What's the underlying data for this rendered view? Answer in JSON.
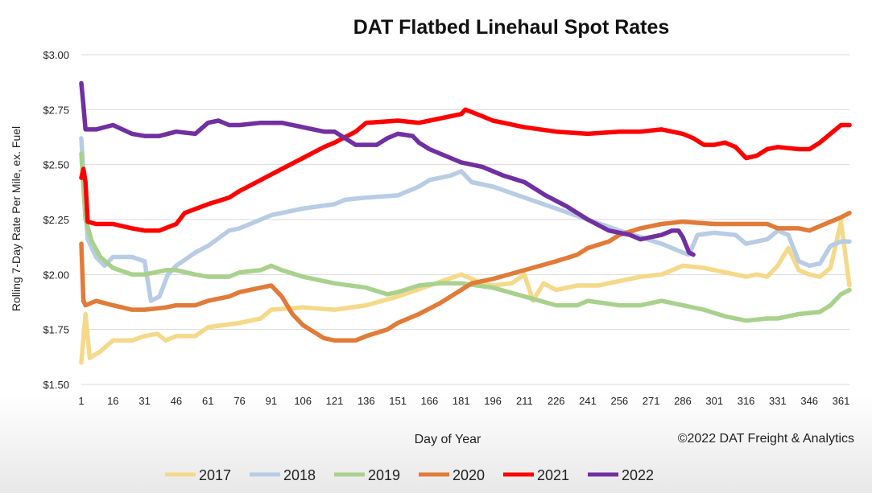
{
  "chart_data": {
    "type": "line",
    "title": "DAT Flatbed Linehaul Spot Rates",
    "xlabel": "Day of Year",
    "ylabel": "Rolling 7-Day Rate Per Mile, ex. Fuel",
    "copyright": "©2022 DAT Freight & Analytics",
    "xlim": [
      1,
      365
    ],
    "ylim": [
      1.5,
      3.0
    ],
    "x_ticks": [
      1,
      16,
      31,
      46,
      61,
      76,
      91,
      106,
      121,
      136,
      151,
      166,
      181,
      196,
      211,
      226,
      241,
      256,
      271,
      286,
      301,
      316,
      331,
      346,
      361
    ],
    "y_ticks": [
      {
        "value": 1.5,
        "label": "$1.50"
      },
      {
        "value": 1.75,
        "label": "$1.75"
      },
      {
        "value": 2.0,
        "label": "$2.00"
      },
      {
        "value": 2.25,
        "label": "$2.25"
      },
      {
        "value": 2.5,
        "label": "$2.50"
      },
      {
        "value": 2.75,
        "label": "$2.75"
      },
      {
        "value": 3.0,
        "label": "$3.00"
      }
    ],
    "grid": true,
    "legend_position": "bottom",
    "series": [
      {
        "name": "2017",
        "color": "#f5d98a",
        "points": [
          [
            1,
            1.6
          ],
          [
            3,
            1.82
          ],
          [
            5,
            1.62
          ],
          [
            10,
            1.65
          ],
          [
            16,
            1.7
          ],
          [
            25,
            1.7
          ],
          [
            31,
            1.72
          ],
          [
            37,
            1.73
          ],
          [
            41,
            1.7
          ],
          [
            46,
            1.72
          ],
          [
            55,
            1.72
          ],
          [
            61,
            1.76
          ],
          [
            76,
            1.78
          ],
          [
            86,
            1.8
          ],
          [
            91,
            1.84
          ],
          [
            106,
            1.85
          ],
          [
            121,
            1.84
          ],
          [
            136,
            1.86
          ],
          [
            151,
            1.9
          ],
          [
            166,
            1.95
          ],
          [
            181,
            2.0
          ],
          [
            191,
            1.96
          ],
          [
            196,
            1.95
          ],
          [
            205,
            1.96
          ],
          [
            211,
            2.0
          ],
          [
            215,
            1.88
          ],
          [
            220,
            1.96
          ],
          [
            226,
            1.93
          ],
          [
            236,
            1.95
          ],
          [
            246,
            1.95
          ],
          [
            256,
            1.97
          ],
          [
            266,
            1.99
          ],
          [
            276,
            2.0
          ],
          [
            286,
            2.04
          ],
          [
            296,
            2.03
          ],
          [
            301,
            2.02
          ],
          [
            311,
            2.0
          ],
          [
            316,
            1.99
          ],
          [
            321,
            2.0
          ],
          [
            326,
            1.99
          ],
          [
            331,
            2.04
          ],
          [
            336,
            2.12
          ],
          [
            341,
            2.02
          ],
          [
            346,
            2.0
          ],
          [
            351,
            1.99
          ],
          [
            356,
            2.03
          ],
          [
            361,
            2.24
          ],
          [
            365,
            1.95
          ]
        ]
      },
      {
        "name": "2018",
        "color": "#b8cce4",
        "points": [
          [
            1,
            2.62
          ],
          [
            4,
            2.16
          ],
          [
            8,
            2.08
          ],
          [
            12,
            2.04
          ],
          [
            16,
            2.08
          ],
          [
            25,
            2.08
          ],
          [
            31,
            2.06
          ],
          [
            34,
            1.88
          ],
          [
            38,
            1.9
          ],
          [
            42,
            2.0
          ],
          [
            46,
            2.04
          ],
          [
            55,
            2.1
          ],
          [
            61,
            2.13
          ],
          [
            71,
            2.2
          ],
          [
            76,
            2.21
          ],
          [
            86,
            2.25
          ],
          [
            91,
            2.27
          ],
          [
            106,
            2.3
          ],
          [
            121,
            2.32
          ],
          [
            126,
            2.34
          ],
          [
            136,
            2.35
          ],
          [
            151,
            2.36
          ],
          [
            161,
            2.4
          ],
          [
            166,
            2.43
          ],
          [
            176,
            2.45
          ],
          [
            181,
            2.47
          ],
          [
            186,
            2.42
          ],
          [
            196,
            2.4
          ],
          [
            211,
            2.35
          ],
          [
            226,
            2.3
          ],
          [
            241,
            2.25
          ],
          [
            256,
            2.2
          ],
          [
            266,
            2.17
          ],
          [
            276,
            2.14
          ],
          [
            286,
            2.1
          ],
          [
            289,
            2.09
          ],
          [
            293,
            2.18
          ],
          [
            301,
            2.19
          ],
          [
            311,
            2.18
          ],
          [
            316,
            2.14
          ],
          [
            326,
            2.16
          ],
          [
            331,
            2.2
          ],
          [
            336,
            2.18
          ],
          [
            341,
            2.06
          ],
          [
            346,
            2.04
          ],
          [
            351,
            2.05
          ],
          [
            356,
            2.13
          ],
          [
            361,
            2.15
          ],
          [
            365,
            2.15
          ]
        ]
      },
      {
        "name": "2019",
        "color": "#a9d18e",
        "points": [
          [
            1,
            2.55
          ],
          [
            3,
            2.25
          ],
          [
            6,
            2.15
          ],
          [
            10,
            2.08
          ],
          [
            16,
            2.03
          ],
          [
            25,
            2.0
          ],
          [
            31,
            2.0
          ],
          [
            41,
            2.02
          ],
          [
            46,
            2.02
          ],
          [
            55,
            2.0
          ],
          [
            61,
            1.99
          ],
          [
            71,
            1.99
          ],
          [
            76,
            2.01
          ],
          [
            86,
            2.02
          ],
          [
            91,
            2.04
          ],
          [
            96,
            2.02
          ],
          [
            106,
            1.99
          ],
          [
            121,
            1.96
          ],
          [
            136,
            1.94
          ],
          [
            146,
            1.91
          ],
          [
            151,
            1.92
          ],
          [
            161,
            1.95
          ],
          [
            171,
            1.96
          ],
          [
            181,
            1.96
          ],
          [
            196,
            1.94
          ],
          [
            211,
            1.9
          ],
          [
            226,
            1.86
          ],
          [
            236,
            1.86
          ],
          [
            241,
            1.88
          ],
          [
            256,
            1.86
          ],
          [
            266,
            1.86
          ],
          [
            276,
            1.88
          ],
          [
            286,
            1.86
          ],
          [
            296,
            1.84
          ],
          [
            306,
            1.81
          ],
          [
            316,
            1.79
          ],
          [
            326,
            1.8
          ],
          [
            331,
            1.8
          ],
          [
            341,
            1.82
          ],
          [
            351,
            1.83
          ],
          [
            356,
            1.86
          ],
          [
            361,
            1.91
          ],
          [
            365,
            1.93
          ]
        ]
      },
      {
        "name": "2020",
        "color": "#e07b39",
        "points": [
          [
            1,
            2.14
          ],
          [
            2,
            1.88
          ],
          [
            3,
            1.86
          ],
          [
            8,
            1.88
          ],
          [
            16,
            1.86
          ],
          [
            25,
            1.84
          ],
          [
            31,
            1.84
          ],
          [
            41,
            1.85
          ],
          [
            46,
            1.86
          ],
          [
            55,
            1.86
          ],
          [
            61,
            1.88
          ],
          [
            71,
            1.9
          ],
          [
            76,
            1.92
          ],
          [
            86,
            1.94
          ],
          [
            91,
            1.95
          ],
          [
            96,
            1.9
          ],
          [
            101,
            1.82
          ],
          [
            106,
            1.77
          ],
          [
            111,
            1.74
          ],
          [
            116,
            1.71
          ],
          [
            121,
            1.7
          ],
          [
            131,
            1.7
          ],
          [
            136,
            1.72
          ],
          [
            146,
            1.75
          ],
          [
            151,
            1.78
          ],
          [
            161,
            1.82
          ],
          [
            171,
            1.87
          ],
          [
            181,
            1.93
          ],
          [
            186,
            1.96
          ],
          [
            196,
            1.98
          ],
          [
            211,
            2.02
          ],
          [
            226,
            2.06
          ],
          [
            236,
            2.09
          ],
          [
            241,
            2.12
          ],
          [
            251,
            2.15
          ],
          [
            256,
            2.18
          ],
          [
            266,
            2.21
          ],
          [
            276,
            2.23
          ],
          [
            286,
            2.24
          ],
          [
            301,
            2.23
          ],
          [
            311,
            2.23
          ],
          [
            316,
            2.23
          ],
          [
            326,
            2.23
          ],
          [
            331,
            2.21
          ],
          [
            341,
            2.21
          ],
          [
            346,
            2.2
          ],
          [
            351,
            2.22
          ],
          [
            356,
            2.24
          ],
          [
            361,
            2.26
          ],
          [
            365,
            2.28
          ]
        ]
      },
      {
        "name": "2021",
        "color": "#ff0000",
        "points": [
          [
            1,
            2.44
          ],
          [
            2,
            2.48
          ],
          [
            3,
            2.42
          ],
          [
            4,
            2.24
          ],
          [
            8,
            2.23
          ],
          [
            16,
            2.23
          ],
          [
            25,
            2.21
          ],
          [
            31,
            2.2
          ],
          [
            38,
            2.2
          ],
          [
            46,
            2.23
          ],
          [
            50,
            2.28
          ],
          [
            61,
            2.32
          ],
          [
            71,
            2.35
          ],
          [
            76,
            2.38
          ],
          [
            86,
            2.43
          ],
          [
            96,
            2.48
          ],
          [
            106,
            2.53
          ],
          [
            116,
            2.58
          ],
          [
            121,
            2.6
          ],
          [
            131,
            2.65
          ],
          [
            136,
            2.69
          ],
          [
            151,
            2.7
          ],
          [
            161,
            2.69
          ],
          [
            166,
            2.7
          ],
          [
            181,
            2.73
          ],
          [
            183,
            2.75
          ],
          [
            191,
            2.72
          ],
          [
            196,
            2.7
          ],
          [
            211,
            2.67
          ],
          [
            226,
            2.65
          ],
          [
            241,
            2.64
          ],
          [
            256,
            2.65
          ],
          [
            266,
            2.65
          ],
          [
            276,
            2.66
          ],
          [
            286,
            2.64
          ],
          [
            291,
            2.62
          ],
          [
            296,
            2.59
          ],
          [
            301,
            2.59
          ],
          [
            306,
            2.6
          ],
          [
            311,
            2.58
          ],
          [
            316,
            2.53
          ],
          [
            321,
            2.54
          ],
          [
            326,
            2.57
          ],
          [
            331,
            2.58
          ],
          [
            341,
            2.57
          ],
          [
            346,
            2.57
          ],
          [
            351,
            2.6
          ],
          [
            356,
            2.64
          ],
          [
            361,
            2.68
          ],
          [
            365,
            2.68
          ]
        ]
      },
      {
        "name": "2022",
        "color": "#7030a0",
        "points": [
          [
            1,
            2.87
          ],
          [
            2,
            2.77
          ],
          [
            3,
            2.66
          ],
          [
            8,
            2.66
          ],
          [
            16,
            2.68
          ],
          [
            25,
            2.64
          ],
          [
            31,
            2.63
          ],
          [
            38,
            2.63
          ],
          [
            46,
            2.65
          ],
          [
            55,
            2.64
          ],
          [
            61,
            2.69
          ],
          [
            66,
            2.7
          ],
          [
            71,
            2.68
          ],
          [
            76,
            2.68
          ],
          [
            86,
            2.69
          ],
          [
            96,
            2.69
          ],
          [
            106,
            2.67
          ],
          [
            116,
            2.65
          ],
          [
            121,
            2.65
          ],
          [
            126,
            2.62
          ],
          [
            131,
            2.59
          ],
          [
            141,
            2.59
          ],
          [
            146,
            2.62
          ],
          [
            151,
            2.64
          ],
          [
            158,
            2.63
          ],
          [
            161,
            2.6
          ],
          [
            166,
            2.57
          ],
          [
            176,
            2.53
          ],
          [
            181,
            2.51
          ],
          [
            191,
            2.49
          ],
          [
            201,
            2.45
          ],
          [
            211,
            2.42
          ],
          [
            221,
            2.36
          ],
          [
            231,
            2.31
          ],
          [
            241,
            2.25
          ],
          [
            251,
            2.2
          ],
          [
            261,
            2.18
          ],
          [
            266,
            2.16
          ],
          [
            276,
            2.18
          ],
          [
            281,
            2.2
          ],
          [
            284,
            2.2
          ],
          [
            286,
            2.17
          ],
          [
            289,
            2.1
          ],
          [
            291,
            2.09
          ]
        ]
      }
    ]
  }
}
